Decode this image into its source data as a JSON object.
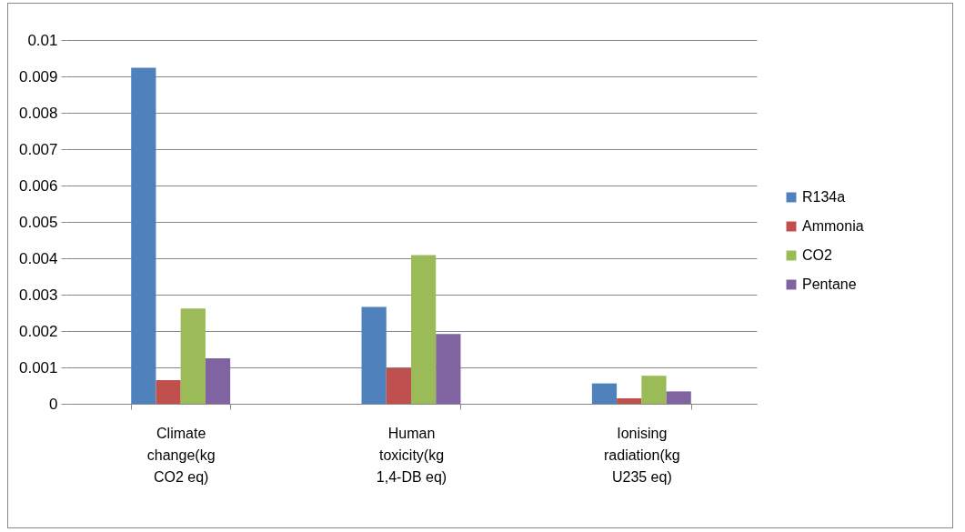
{
  "chart_data": {
    "type": "bar",
    "categories": [
      "Climate change(kg CO2 eq)",
      "Human toxicity(kg 1,4-DB eq)",
      "Ionising radiation(kg U235 eq)"
    ],
    "series": [
      {
        "name": "R134a",
        "color": "#4f81bd",
        "values": [
          0.00924,
          0.00266,
          0.00056
        ]
      },
      {
        "name": "Ammonia",
        "color": "#c0504d",
        "values": [
          0.00065,
          0.00098,
          0.00015
        ]
      },
      {
        "name": "CO2",
        "color": "#9bbb59",
        "values": [
          0.00262,
          0.00409,
          0.00077
        ]
      },
      {
        "name": "Pentane",
        "color": "#8064a2",
        "values": [
          0.00125,
          0.00192,
          0.00034
        ]
      }
    ],
    "ylim": [
      0,
      0.01
    ],
    "yticks": [
      0,
      0.001,
      0.002,
      0.003,
      0.004,
      0.005,
      0.006,
      0.007,
      0.008,
      0.009,
      0.01
    ],
    "grid": "y",
    "legend": "right"
  }
}
